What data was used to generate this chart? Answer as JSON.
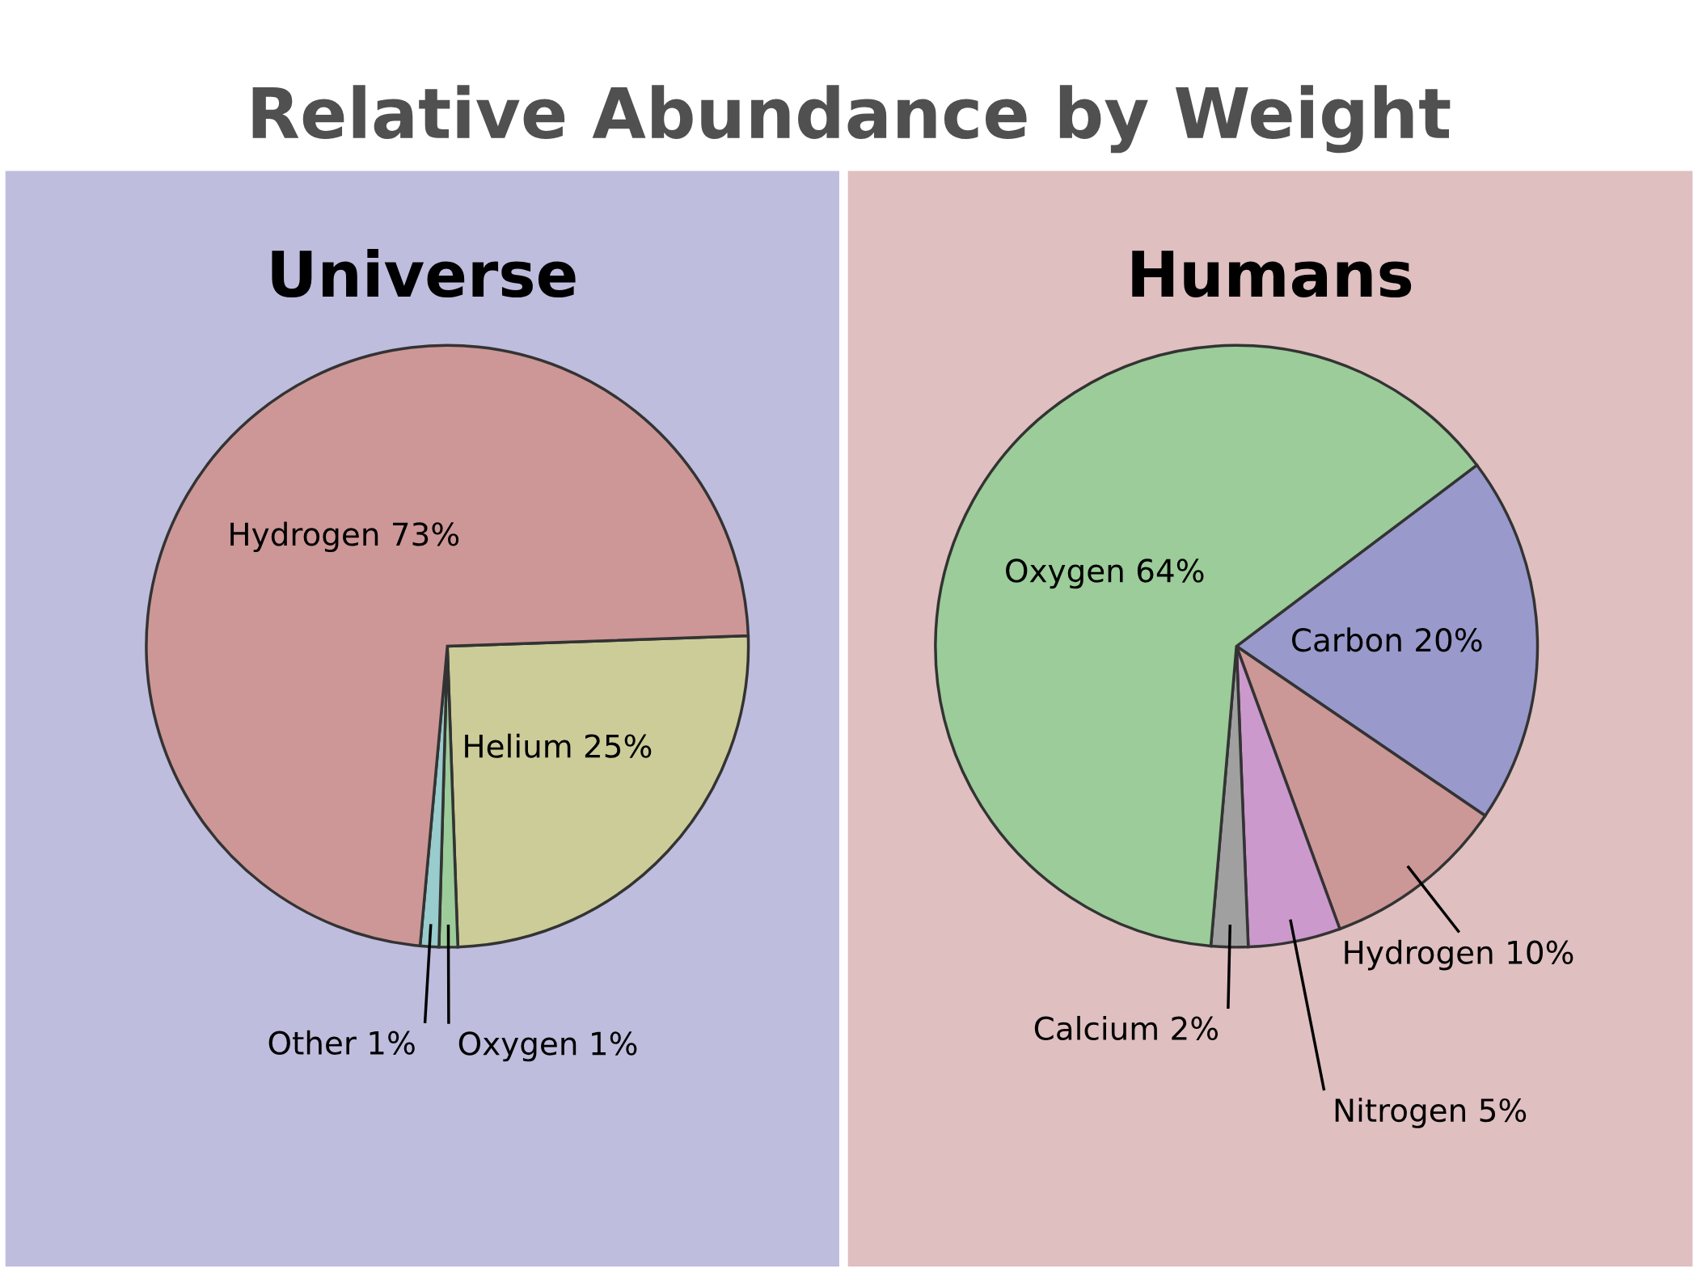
{
  "chart_data": [
    {
      "type": "pie",
      "title": "Universe",
      "annotations": [
        "Relative Abundance by Weight"
      ],
      "categories": [
        "Helium",
        "Oxygen",
        "Other",
        "Hydrogen"
      ],
      "values": [
        25,
        1,
        1,
        73
      ],
      "value_labels": [
        "25%",
        "1%",
        "1%",
        "73%"
      ],
      "colors": [
        "#cccc99",
        "#9ccc99",
        "#99cccc",
        "#cd9797"
      ]
    },
    {
      "type": "pie",
      "title": "Humans",
      "categories": [
        "Carbon",
        "Hydrogen",
        "Nitrogen",
        "Calcium",
        "Oxygen"
      ],
      "values": [
        20,
        10,
        5,
        2,
        64
      ],
      "value_labels": [
        "20%",
        "10%",
        "5%",
        "2%",
        "64%"
      ],
      "colors": [
        "#9999cc",
        "#cc9797",
        "#cc99cc",
        "#a0a0a0",
        "#9bcc99"
      ]
    }
  ]
}
